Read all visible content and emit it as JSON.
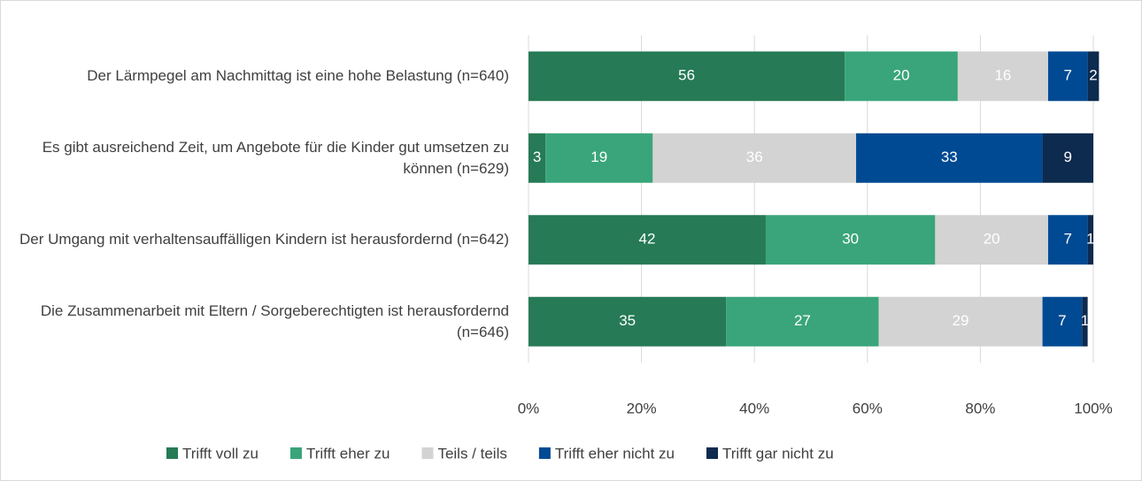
{
  "chart_data": {
    "type": "stacked_barh",
    "categories": [
      "Der Lärmpegel am Nachmittag ist eine hohe Belastung (n=640)",
      "Es gibt ausreichend Zeit, um Angebote für die Kinder gut umsetzen zu können (n=629)",
      "Der Umgang mit verhaltensauffälligen Kindern ist herausfordernd (n=642)",
      "Die Zusammenarbeit mit Eltern / Sorgeberechtigten ist herausfordernd (n=646)"
    ],
    "series": [
      {
        "name": "Trifft voll zu",
        "color": "#267a56",
        "values": [
          56,
          3,
          42,
          35
        ]
      },
      {
        "name": "Trifft eher zu",
        "color": "#3aa57a",
        "values": [
          20,
          19,
          30,
          27
        ]
      },
      {
        "name": "Teils / teils",
        "color": "#d3d3d3",
        "values": [
          16,
          36,
          20,
          29
        ]
      },
      {
        "name": "Trifft eher nicht zu",
        "color": "#004a93",
        "values": [
          7,
          33,
          7,
          7
        ]
      },
      {
        "name": "Trifft gar nicht zu",
        "color": "#0d2a4f",
        "values": [
          2,
          9,
          1,
          1
        ]
      }
    ],
    "xlim": [
      0,
      100
    ],
    "xticks": [
      {
        "value": 0,
        "label": "0%"
      },
      {
        "value": 20,
        "label": "20%"
      },
      {
        "value": 40,
        "label": "40%"
      },
      {
        "value": 60,
        "label": "60%"
      },
      {
        "value": 80,
        "label": "80%"
      },
      {
        "value": 100,
        "label": "100%"
      }
    ],
    "grid": true,
    "legend": "bottom"
  }
}
